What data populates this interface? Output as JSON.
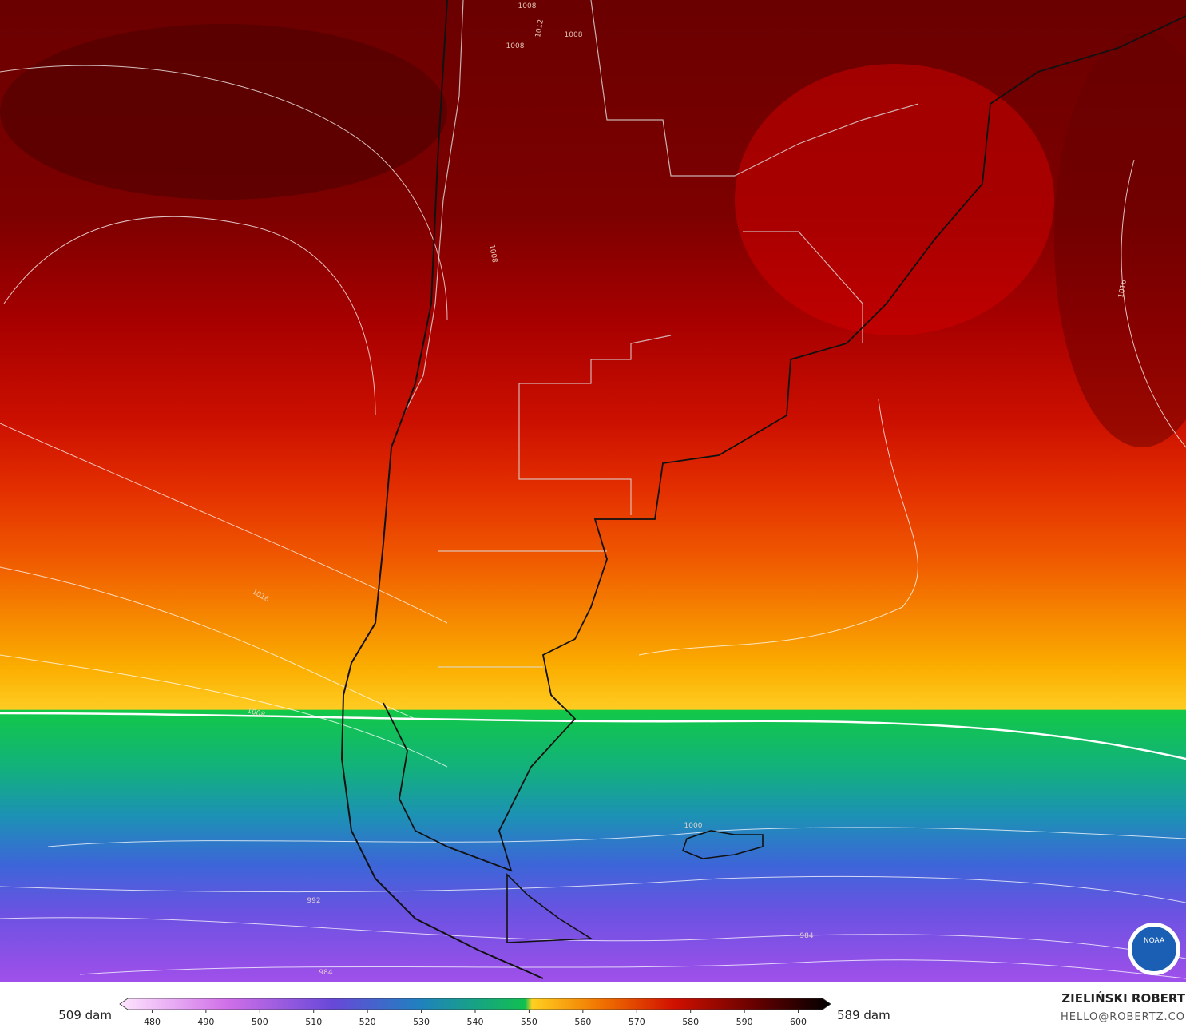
{
  "map": {
    "contour_labels": [
      "1008",
      "1012",
      "1008",
      "1008",
      "1008",
      "1016",
      "1016",
      "1008",
      "1000",
      "992",
      "984",
      "984"
    ]
  },
  "colorbar": {
    "left_label": "509 dam",
    "right_label": "589 dam",
    "range": [
      474,
      606
    ],
    "ticks": [
      480,
      490,
      500,
      510,
      520,
      530,
      540,
      550,
      560,
      570,
      580,
      590,
      600
    ]
  },
  "credit": {
    "name": "ZIELIŃSKI ROBERT",
    "email": "HELLO@ROBERTZ.CO",
    "logo": "NOAA"
  }
}
